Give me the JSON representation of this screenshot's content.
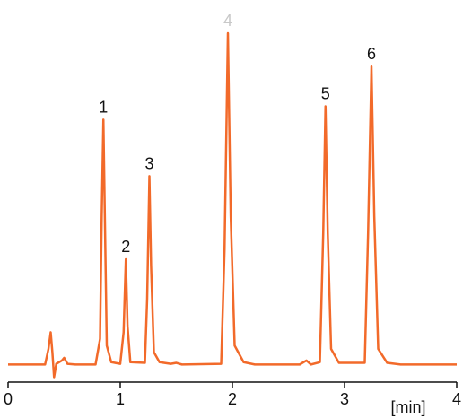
{
  "chart_data": {
    "type": "line",
    "x_label": "[min]",
    "xlim": [
      0,
      4
    ],
    "xticks": [
      0,
      1,
      2,
      3,
      4
    ],
    "ylim": [
      -5,
      110
    ],
    "series": [
      {
        "color": "#f26a2a",
        "x": [
          0,
          0.33,
          0.36,
          0.38,
          0.395,
          0.41,
          0.43,
          0.48,
          0.5,
          0.53,
          0.6,
          0.78,
          0.82,
          0.835,
          0.85,
          0.865,
          0.88,
          0.92,
          1.0,
          1.03,
          1.05,
          1.065,
          1.09,
          1.22,
          1.24,
          1.26,
          1.275,
          1.3,
          1.35,
          1.45,
          1.5,
          1.55,
          1.9,
          1.93,
          1.96,
          1.985,
          2.02,
          2.1,
          2.2,
          2.6,
          2.66,
          2.7,
          2.78,
          2.81,
          2.83,
          2.85,
          2.88,
          2.95,
          3.18,
          3.21,
          3.24,
          3.265,
          3.3,
          3.38,
          3.5,
          4
        ],
        "values": [
          0.3,
          0.3,
          5,
          10,
          4,
          -3.5,
          0.5,
          1.5,
          2.3,
          0.5,
          0.3,
          0.3,
          8,
          45,
          74,
          40,
          6,
          1,
          0.5,
          10,
          32,
          12,
          1,
          0.8,
          20,
          57,
          30,
          4,
          1,
          0.5,
          0.8,
          0.3,
          0.5,
          35,
          100,
          45,
          6,
          1,
          0.3,
          0.3,
          1.5,
          0.3,
          1,
          40,
          78,
          40,
          5,
          0.8,
          0.8,
          40,
          90,
          45,
          5,
          0.8,
          0.3,
          0.3
        ]
      }
    ],
    "annotations": [
      {
        "text": "1",
        "x": 0.85,
        "color": "#111111"
      },
      {
        "text": "2",
        "x": 1.05,
        "color": "#111111"
      },
      {
        "text": "3",
        "x": 1.26,
        "color": "#111111"
      },
      {
        "text": "4",
        "x": 1.96,
        "color": "#c8c8c8"
      },
      {
        "text": "5",
        "x": 2.83,
        "color": "#111111"
      },
      {
        "text": "6",
        "x": 3.24,
        "color": "#111111"
      }
    ]
  }
}
